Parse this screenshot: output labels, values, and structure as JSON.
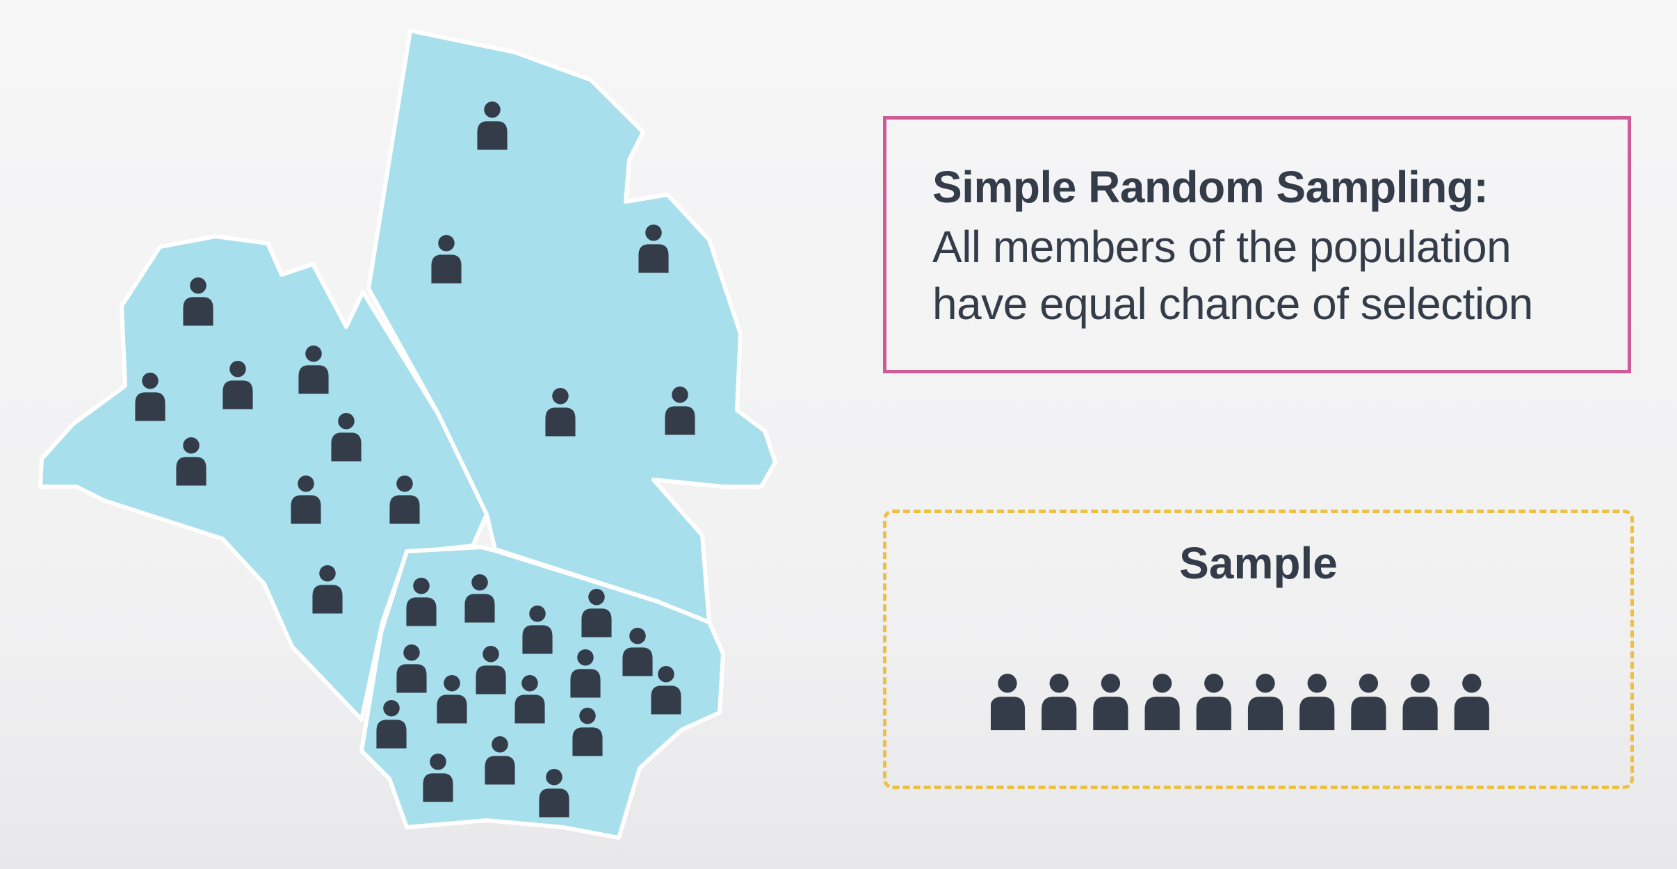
{
  "definition": {
    "title": "Simple Random Sampling:",
    "line1": "All members of the population",
    "line2": "have equal chance of selection"
  },
  "sample": {
    "title": "Sample",
    "count": 10
  },
  "colors": {
    "region_fill": "#a8dfec",
    "person": "#333c48",
    "definition_border": "#cf5b96",
    "sample_border": "#ecc044"
  },
  "icons": {
    "person": "person-icon"
  }
}
